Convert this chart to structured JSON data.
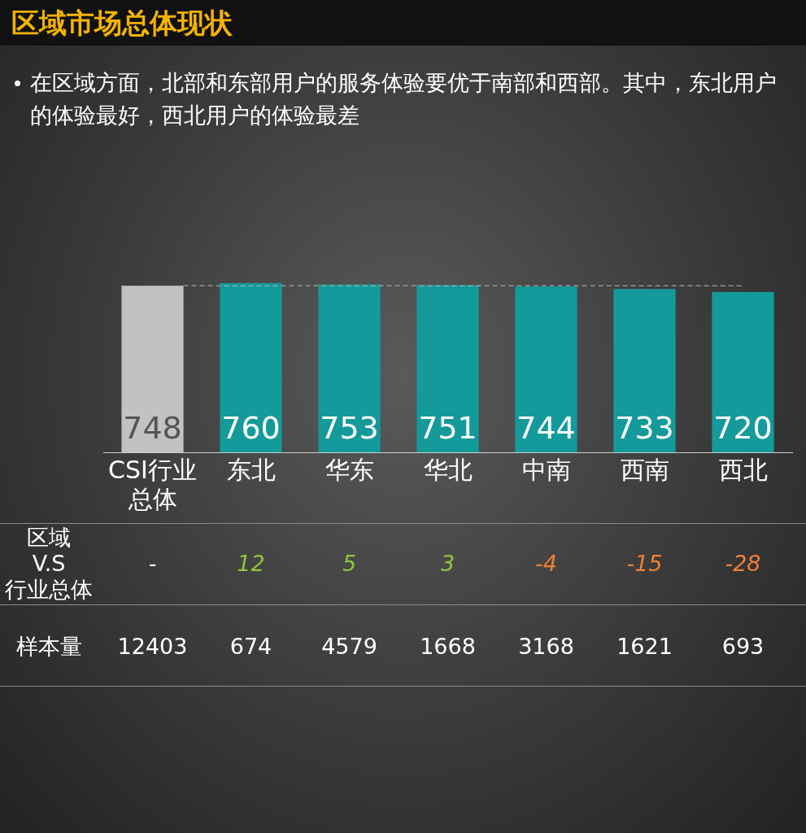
{
  "chart_data": {
    "type": "bar",
    "title": "区域市场总体现状",
    "subtitle": "在区域方面，北部和东部用户的服务体验要优于南部和西部。其中，东北用户的体验最好，西北用户的体验最差",
    "categories": [
      "CSI行业总体",
      "东北",
      "华东",
      "华北",
      "中南",
      "西南",
      "西北"
    ],
    "values": [
      748,
      760,
      753,
      751,
      744,
      733,
      720
    ],
    "colors": [
      "#c2c2c2",
      "#149a9a",
      "#149a9a",
      "#149a9a",
      "#149a9a",
      "#149a9a",
      "#149a9a"
    ],
    "data_labels": true,
    "ref_lines": [
      {
        "axis": "y",
        "value": 748,
        "color": "#bbbbbb",
        "line_style": "dashed"
      }
    ],
    "annotations": [
      "区域 V.S 行业总体",
      "-",
      "12",
      "5",
      "3",
      "-4",
      "-15",
      "-28",
      "样本量",
      "12403",
      "674",
      "4579",
      "1668",
      "3168",
      "1621",
      "693"
    ],
    "legend": false
  }
}
